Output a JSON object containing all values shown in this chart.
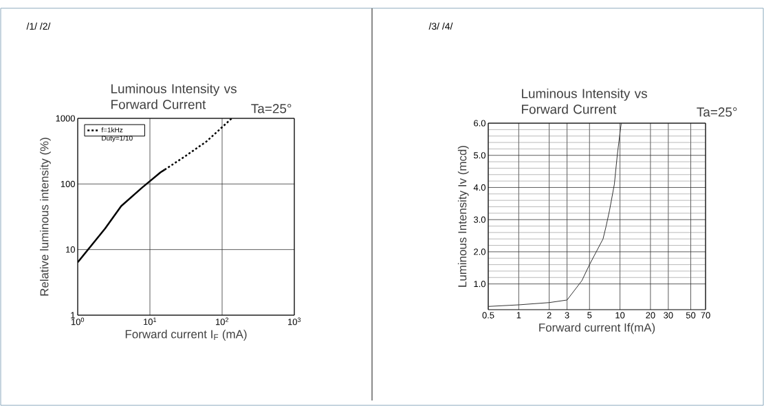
{
  "chart_data": [
    {
      "type": "line",
      "title": "Luminous Intensity vs Forward Current",
      "xlabel": "Forward current I$_{F}$ (mA)",
      "ylabel": "Relative luminous intensity (%)",
      "annotations": [
        "/1/ /2/",
        "Ta=25°"
      ],
      "log": "xy",
      "grid": true,
      "legend": "top left",
      "xlim": [
        1,
        1000
      ],
      "ylim": [
        1,
        1000
      ],
      "xticks": [
        {
          "value": 1,
          "label": "10$^{0}$"
        },
        {
          "value": 10,
          "label": "10$^{1}$"
        },
        {
          "value": 100,
          "label": "10$^{2}$"
        },
        {
          "value": 1000,
          "label": "10$^{3}$"
        }
      ],
      "yticks": [
        1,
        10,
        100,
        1000
      ],
      "series": [
        {
          "color": "#000000",
          "line_style": "solid",
          "x": [
            1,
            2.4,
            4,
            7.8,
            14,
            16
          ],
          "values": [
            6.4,
            21,
            46,
            88,
            150,
            165
          ]
        },
        {
          "name": "f=1kHz Duty=1/10",
          "color": "#000000",
          "line_style": "dashed",
          "x": [
            16,
            29,
            61,
            136
          ],
          "values": [
            165,
            253,
            446,
            1000
          ]
        }
      ]
    },
    {
      "type": "line",
      "title": "Luminous Intensity vs Forward Current",
      "xlabel": "Forward current If(mA)",
      "ylabel": "Luminous Intensity Iv (mcd)",
      "annotations": [
        "/3/ /4/",
        "Ta=25°"
      ],
      "log": "x",
      "grid": true,
      "xlim": [
        0.5,
        70
      ],
      "ylim": [
        0.2,
        6
      ],
      "xticks": [
        0.5,
        1,
        2,
        3,
        5,
        10,
        20,
        30,
        50,
        70
      ],
      "yticks": [
        {
          "value": 1,
          "label": "1.0"
        },
        {
          "value": 2,
          "label": "2.0"
        },
        {
          "value": 3,
          "label": "3.0"
        },
        {
          "value": 4,
          "label": "4.0"
        },
        {
          "value": 5,
          "label": "5.0"
        },
        {
          "value": 6,
          "label": "6.0"
        }
      ],
      "series": [
        {
          "color": "#333333",
          "line_style": "solid",
          "x": [
            0.5,
            1,
            2,
            3,
            4.2,
            5,
            6.8,
            7.3,
            7.9,
            8.8,
            9.4,
            10,
            10.3
          ],
          "values": [
            0.3,
            0.35,
            0.42,
            0.5,
            1.1,
            1.6,
            2.4,
            2.8,
            3.3,
            4.1,
            5.0,
            5.7,
            6.0
          ]
        }
      ]
    }
  ]
}
